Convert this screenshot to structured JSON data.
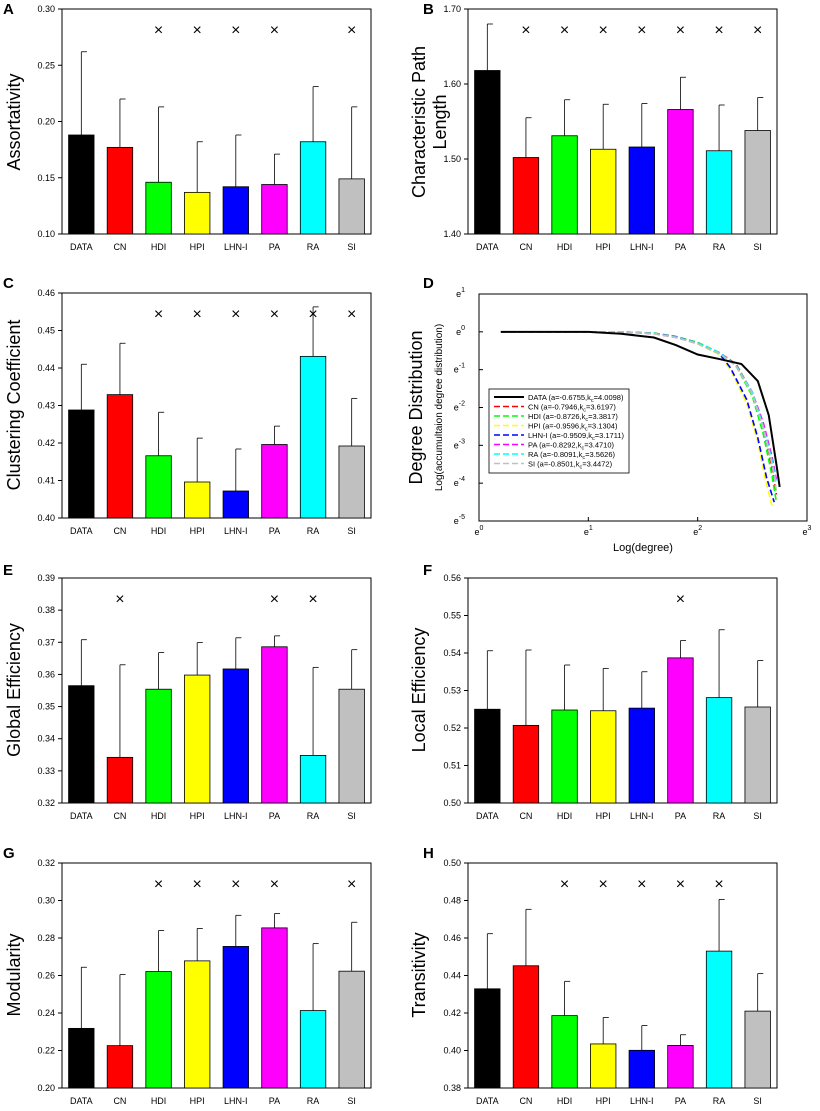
{
  "colors": {
    "DATA": "#000000",
    "CN": "#ff0000",
    "HDI": "#00ff00",
    "HPI": "#ffff00",
    "LHN-I": "#0000ff",
    "PA": "#ff00ff",
    "RA": "#00ffff",
    "SI": "#c0c0c0"
  },
  "marker": "×",
  "chart_data": [
    {
      "panel": "A",
      "type": "bar",
      "ylabel": "Assortativity",
      "categories": [
        "DATA",
        "CN",
        "HDI",
        "HPI",
        "LHN-I",
        "PA",
        "RA",
        "SI"
      ],
      "values": [
        0.188,
        0.177,
        0.146,
        0.137,
        0.142,
        0.144,
        0.182,
        0.149
      ],
      "errors": [
        0.074,
        0.043,
        0.067,
        0.045,
        0.046,
        0.027,
        0.049,
        0.064
      ],
      "ylim": [
        0.1,
        0.3
      ],
      "yticks": [
        "0.10",
        "0.15",
        "0.20",
        "0.25",
        "0.30"
      ],
      "marked": [
        false,
        false,
        true,
        true,
        true,
        true,
        false,
        true
      ]
    },
    {
      "panel": "B",
      "type": "bar",
      "ylabel": "Characteristic Path Length",
      "ylabel_lines": [
        "Characteristic Path",
        "Length"
      ],
      "categories": [
        "DATA",
        "CN",
        "HDI",
        "HPI",
        "LHN-I",
        "PA",
        "RA",
        "SI"
      ],
      "values": [
        1.618,
        1.502,
        1.531,
        1.513,
        1.516,
        1.566,
        1.511,
        1.538
      ],
      "errors": [
        0.062,
        0.053,
        0.048,
        0.06,
        0.058,
        0.043,
        0.061,
        0.044
      ],
      "ylim": [
        1.4,
        1.7
      ],
      "yticks": [
        "1.40",
        "1.50",
        "1.60",
        "1.70"
      ],
      "marked": [
        false,
        true,
        true,
        true,
        true,
        true,
        true,
        true
      ]
    },
    {
      "panel": "C",
      "type": "bar",
      "ylabel": "Clustering Coefficient",
      "categories": [
        "DATA",
        "CN",
        "HDI",
        "HPI",
        "LHN-I",
        "PA",
        "RA",
        "SI"
      ],
      "values": [
        0.4288,
        0.4329,
        0.4166,
        0.4096,
        0.4072,
        0.4196,
        0.4431,
        0.4192
      ],
      "errors": [
        0.0122,
        0.0137,
        0.0116,
        0.0117,
        0.0112,
        0.0049,
        0.0132,
        0.0127
      ],
      "ylim": [
        0.4,
        0.46
      ],
      "yticks": [
        "0.40",
        "0.41",
        "0.42",
        "0.43",
        "0.44",
        "0.45",
        "0.46"
      ],
      "marked": [
        false,
        false,
        true,
        true,
        true,
        true,
        true,
        true
      ]
    },
    {
      "panel": "D",
      "type": "line",
      "ylabel": "Degree Distribution",
      "ylabel2": "Log(accumultaion degree distribution)",
      "xlabel": "Log(degree)",
      "xticks": [
        {
          "base": "e",
          "exp": "0"
        },
        {
          "base": "e",
          "exp": "1"
        },
        {
          "base": "e",
          "exp": "2"
        },
        {
          "base": "e",
          "exp": "3"
        }
      ],
      "yticks": [
        {
          "base": "e",
          "exp": "1"
        },
        {
          "base": "e",
          "exp": "0"
        },
        {
          "base": "e",
          "exp": "-1"
        },
        {
          "base": "e",
          "exp": "-2"
        },
        {
          "base": "e",
          "exp": "-3"
        },
        {
          "base": "e",
          "exp": "-4"
        },
        {
          "base": "e",
          "exp": "-5"
        }
      ],
      "xlim": [
        0,
        3
      ],
      "ylim": [
        -5,
        1
      ],
      "legend_position": "lower-left",
      "series": [
        {
          "name": "DATA",
          "label": "DATA (a=-0.6755,k",
          "sub": "c",
          "suffix": "=4.0098)",
          "dash": "",
          "x": [
            0.2,
            0.5,
            1.0,
            1.3,
            1.6,
            1.8,
            2.0,
            2.2,
            2.4,
            2.55,
            2.65,
            2.72,
            2.75
          ],
          "y": [
            0,
            0,
            0,
            -0.05,
            -0.15,
            -0.35,
            -0.6,
            -0.72,
            -0.85,
            -1.3,
            -2.2,
            -3.5,
            -4.1
          ]
        },
        {
          "name": "CN",
          "label": "CN (a=-0.7946,k",
          "sub": "c",
          "suffix": "=3.6197)",
          "dash": "6,3",
          "x": [
            0.2,
            0.5,
            1.0,
            1.3,
            1.6,
            1.8,
            2.0,
            2.2,
            2.35,
            2.5,
            2.6,
            2.68,
            2.72
          ],
          "y": [
            0,
            0,
            0,
            0,
            -0.05,
            -0.15,
            -0.3,
            -0.55,
            -0.85,
            -1.6,
            -2.5,
            -3.6,
            -4.3
          ]
        },
        {
          "name": "HDI",
          "label": "HDI (a=-0.8726,k",
          "sub": "c",
          "suffix": "=3.3817)",
          "dash": "6,3",
          "x": [
            0.2,
            0.5,
            1.0,
            1.3,
            1.6,
            1.8,
            2.0,
            2.2,
            2.35,
            2.5,
            2.6,
            2.68,
            2.72
          ],
          "y": [
            0,
            0,
            0,
            0,
            -0.03,
            -0.12,
            -0.28,
            -0.55,
            -0.9,
            -1.7,
            -2.7,
            -3.8,
            -4.5
          ]
        },
        {
          "name": "HPI",
          "label": "HPI (a=-0.9596,k",
          "sub": "c",
          "suffix": "=3.1304)",
          "dash": "6,3",
          "x": [
            0.2,
            0.5,
            1.0,
            1.3,
            1.6,
            1.8,
            2.0,
            2.2,
            2.3,
            2.45,
            2.55,
            2.62,
            2.68
          ],
          "y": [
            0,
            0,
            0,
            0,
            -0.04,
            -0.14,
            -0.32,
            -0.6,
            -1.0,
            -1.9,
            -2.9,
            -3.9,
            -4.6
          ]
        },
        {
          "name": "LHN-I",
          "label": "LHN-I (a=-0.9509,k",
          "sub": "c",
          "suffix": "=3.1711)",
          "dash": "6,3",
          "x": [
            0.2,
            0.5,
            1.0,
            1.3,
            1.6,
            1.8,
            2.0,
            2.2,
            2.3,
            2.45,
            2.55,
            2.63,
            2.7
          ],
          "y": [
            0,
            0,
            0,
            0,
            -0.04,
            -0.13,
            -0.3,
            -0.58,
            -0.95,
            -1.8,
            -2.8,
            -3.85,
            -4.5
          ]
        },
        {
          "name": "PA",
          "label": "PA (a=-0.8292,k",
          "sub": "c",
          "suffix": "=3.4710)",
          "dash": "6,3",
          "x": [
            0.2,
            0.5,
            1.0,
            1.3,
            1.6,
            1.8,
            2.0,
            2.2,
            2.35,
            2.5,
            2.6,
            2.68,
            2.72
          ],
          "y": [
            0,
            0,
            0,
            0,
            -0.04,
            -0.13,
            -0.3,
            -0.55,
            -0.88,
            -1.6,
            -2.4,
            -3.3,
            -3.9
          ]
        },
        {
          "name": "RA",
          "label": "RA (a=-0.8091,k",
          "sub": "c",
          "suffix": "=3.5626)",
          "dash": "6,3",
          "x": [
            0.2,
            0.5,
            1.0,
            1.3,
            1.6,
            1.8,
            2.0,
            2.2,
            2.35,
            2.5,
            2.6,
            2.68,
            2.72
          ],
          "y": [
            0,
            0,
            0,
            0,
            -0.04,
            -0.14,
            -0.3,
            -0.55,
            -0.88,
            -1.6,
            -2.5,
            -3.4,
            -4.0
          ]
        },
        {
          "name": "SI",
          "label": "SI (a=-0.8501,k",
          "sub": "c",
          "suffix": "=3.4472)",
          "dash": "6,3",
          "x": [
            0.2,
            0.5,
            1.0,
            1.3,
            1.6,
            1.8,
            2.0,
            2.2,
            2.35,
            2.5,
            2.6,
            2.68,
            2.72
          ],
          "y": [
            0,
            0,
            0,
            0,
            -0.05,
            -0.15,
            -0.32,
            -0.58,
            -0.9,
            -1.65,
            -2.55,
            -3.5,
            -4.2
          ]
        }
      ]
    },
    {
      "panel": "E",
      "type": "bar",
      "ylabel": "Global Efficiency",
      "categories": [
        "DATA",
        "CN",
        "HDI",
        "HPI",
        "LHN-I",
        "PA",
        "RA",
        "SI"
      ],
      "values": [
        0.3565,
        0.3342,
        0.3554,
        0.3598,
        0.3617,
        0.3686,
        0.3348,
        0.3554
      ],
      "errors": [
        0.0143,
        0.0288,
        0.0114,
        0.0101,
        0.0097,
        0.0034,
        0.0274,
        0.0123
      ],
      "ylim": [
        0.32,
        0.39
      ],
      "yticks": [
        "0.32",
        "0.33",
        "0.34",
        "0.35",
        "0.36",
        "0.37",
        "0.38",
        "0.39"
      ],
      "marked": [
        false,
        true,
        false,
        false,
        false,
        true,
        true,
        false
      ]
    },
    {
      "panel": "F",
      "type": "bar",
      "ylabel": "Local Efficiency",
      "categories": [
        "DATA",
        "CN",
        "HDI",
        "HPI",
        "LHN-I",
        "PA",
        "RA",
        "SI"
      ],
      "values": [
        0.525,
        0.5207,
        0.5248,
        0.5246,
        0.5253,
        0.5387,
        0.5281,
        0.5256
      ],
      "errors": [
        0.0156,
        0.0201,
        0.012,
        0.0113,
        0.0097,
        0.0046,
        0.0181,
        0.0124
      ],
      "ylim": [
        0.5,
        0.56
      ],
      "yticks": [
        "0.50",
        "0.51",
        "0.52",
        "0.53",
        "0.54",
        "0.55",
        "0.56"
      ],
      "marked": [
        false,
        false,
        false,
        false,
        false,
        true,
        false,
        false
      ]
    },
    {
      "panel": "G",
      "type": "bar",
      "ylabel": "Modularity",
      "categories": [
        "DATA",
        "CN",
        "HDI",
        "HPI",
        "LHN-I",
        "PA",
        "RA",
        "SI"
      ],
      "values": [
        0.2318,
        0.2226,
        0.2621,
        0.2678,
        0.2755,
        0.2854,
        0.2413,
        0.2623
      ],
      "errors": [
        0.0326,
        0.0379,
        0.0219,
        0.0173,
        0.0166,
        0.0076,
        0.0357,
        0.0261
      ],
      "ylim": [
        0.2,
        0.32
      ],
      "yticks": [
        "0.20",
        "0.22",
        "0.24",
        "0.26",
        "0.28",
        "0.30",
        "0.32"
      ],
      "marked": [
        false,
        false,
        true,
        true,
        true,
        true,
        false,
        true
      ]
    },
    {
      "panel": "H",
      "type": "bar",
      "ylabel": "Transitivity",
      "categories": [
        "DATA",
        "CN",
        "HDI",
        "HPI",
        "LHN-I",
        "PA",
        "RA",
        "SI"
      ],
      "values": [
        0.4329,
        0.4452,
        0.4186,
        0.4035,
        0.4001,
        0.4027,
        0.453,
        0.421
      ],
      "errors": [
        0.0294,
        0.0301,
        0.0183,
        0.0141,
        0.0132,
        0.0057,
        0.0276,
        0.02
      ],
      "ylim": [
        0.38,
        0.5
      ],
      "yticks": [
        "0.38",
        "0.40",
        "0.42",
        "0.44",
        "0.46",
        "0.48",
        "0.50"
      ],
      "marked": [
        false,
        false,
        true,
        true,
        true,
        true,
        true,
        false
      ]
    }
  ]
}
